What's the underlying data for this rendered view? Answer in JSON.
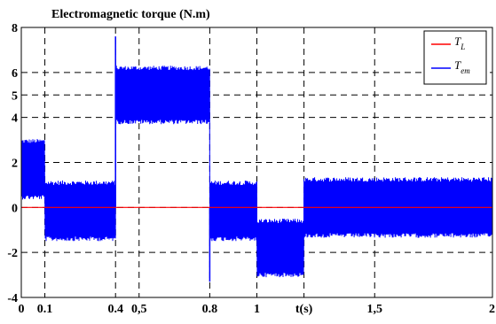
{
  "chart_data": {
    "type": "line",
    "title": "Electromagnetic torque (N.m)",
    "xlabel": "",
    "ylabel": "",
    "xlim": [
      0,
      2
    ],
    "ylim": [
      -4,
      8
    ],
    "x_ticks": [
      {
        "value": 0,
        "label": "0"
      },
      {
        "value": 0.1,
        "label": "0.1"
      },
      {
        "value": 0.4,
        "label": "0.4"
      },
      {
        "value": 0.5,
        "label": "0,5"
      },
      {
        "value": 0.8,
        "label": "0.8"
      },
      {
        "value": 1,
        "label": "1"
      },
      {
        "value": 1.2,
        "label": "t(s)"
      },
      {
        "value": 1.5,
        "label": "1,5"
      },
      {
        "value": 2,
        "label": "2"
      }
    ],
    "y_ticks": [
      {
        "value": -4,
        "label": "-4"
      },
      {
        "value": -2,
        "label": "-2"
      },
      {
        "value": 0,
        "label": "0"
      },
      {
        "value": 2,
        "label": "2"
      },
      {
        "value": 4,
        "label": "4"
      },
      {
        "value": 5,
        "label": "5"
      },
      {
        "value": 6,
        "label": "6"
      },
      {
        "value": 8,
        "label": "8"
      }
    ],
    "grid": true,
    "legend_position": "top-right",
    "series": [
      {
        "name": "T_L",
        "label_main": "T",
        "label_sub": "L",
        "color": "#ff0000",
        "x": [
          0,
          0.1,
          0.1,
          1,
          1,
          1.2,
          1.2,
          2
        ],
        "y": [
          0,
          0,
          0,
          0,
          0,
          0,
          0,
          0
        ]
      },
      {
        "name": "T_em",
        "label_main": "T",
        "label_sub": "em",
        "color": "#0000ff",
        "segments": [
          {
            "t0": 0.0,
            "t1": 0.1,
            "center": 1.7,
            "amplitude": 1.35
          },
          {
            "t0": 0.1,
            "t1": 0.4,
            "center": -0.15,
            "amplitude": 1.35
          },
          {
            "t0": 0.4,
            "t1": 0.8,
            "center": 5.0,
            "amplitude": 1.3
          },
          {
            "t0": 0.8,
            "t1": 1.0,
            "center": -0.15,
            "amplitude": 1.35
          },
          {
            "t0": 1.0,
            "t1": 1.2,
            "center": -1.8,
            "amplitude": 1.3
          },
          {
            "t0": 1.2,
            "t1": 2.0,
            "center": 0.0,
            "amplitude": 1.35
          }
        ],
        "spikes": [
          {
            "x": 0.4,
            "y": 7.6
          },
          {
            "x": 0.8,
            "y": -3.3
          }
        ]
      }
    ]
  }
}
